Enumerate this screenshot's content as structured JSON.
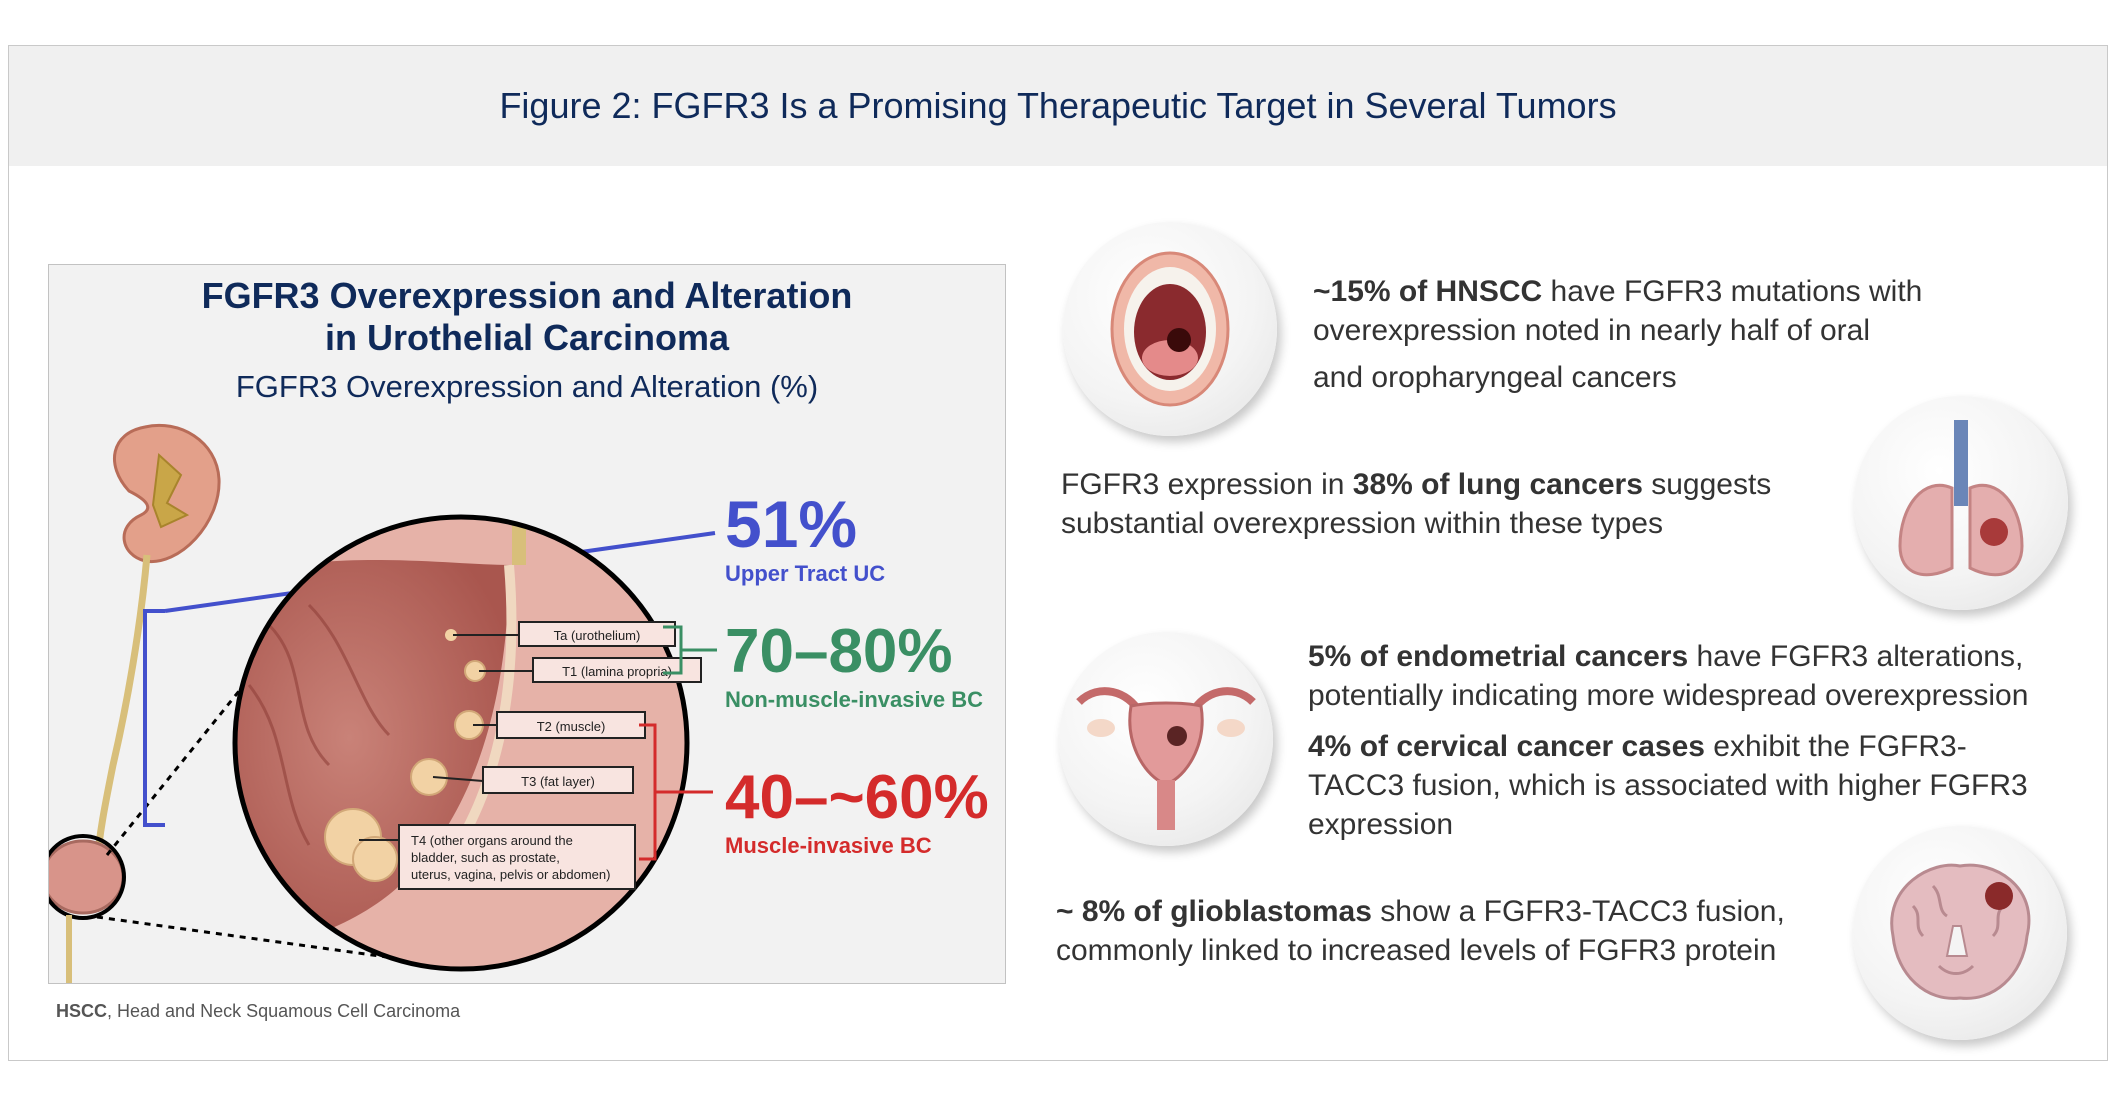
{
  "figure_title": "Figure 2: FGFR3 Is a Promising Therapeutic Target in Several Tumors",
  "left_panel": {
    "title_line1": "FGFR3 Overexpression and Alteration",
    "title_line2": "in Urothelial Carcinoma",
    "subtitle": "FGFR3 Overexpression and Alteration (%)",
    "stages": [
      "Ta (urothelium)",
      "T1 (lamina propria)",
      "T2 (muscle)",
      "T3 (fat layer)"
    ],
    "stage_t4": {
      "line1": "T4 (other organs around the",
      "line2": "bladder, such as prostate,",
      "line3": "uterus, vagina, pelvis or abdomen)"
    },
    "stats": [
      {
        "value": "51%",
        "label": "Upper Tract UC",
        "color": "#4350cc"
      },
      {
        "value": "70–80%",
        "label": "Non-muscle-invasive BC",
        "color": "#3a8f64"
      },
      {
        "value": "40–~60%",
        "label": "Muscle-invasive BC",
        "color": "#d42b2b"
      }
    ]
  },
  "footnote": {
    "abbr": "HSCC",
    "text": ", Head and Neck Squamous Cell Carcinoma"
  },
  "items": [
    {
      "icon": "mouth-icon",
      "bold": "~15% of HNSCC",
      "line1_rest": " have FGFR3 mutations with",
      "line2": "overexpression noted in nearly half of oral",
      "line3": "and oropharyngeal cancers"
    },
    {
      "icon": "lungs-icon",
      "pre": "FGFR3 expression in ",
      "bold": "38% of lung cancers",
      "post": " suggests",
      "line2": "substantial overexpression within these types"
    },
    {
      "icon": "uterus-icon",
      "bold": "5% of endometrial cancers",
      "line1_rest": " have FGFR3 alterations,",
      "line2": "potentially indicating more widespread overexpression",
      "bold2": "4% of cervical cancer cases",
      "line3_rest": " exhibit the FGFR3-",
      "line4": "TACC3 fusion, which is associated with higher FGFR3",
      "line5": "expression"
    },
    {
      "icon": "brain-icon",
      "bold": "~ 8% of glioblastomas",
      "line1_rest": " show a FGFR3-TACC3 fusion,",
      "line2": "commonly linked to increased levels of FGFR3 protein"
    }
  ]
}
